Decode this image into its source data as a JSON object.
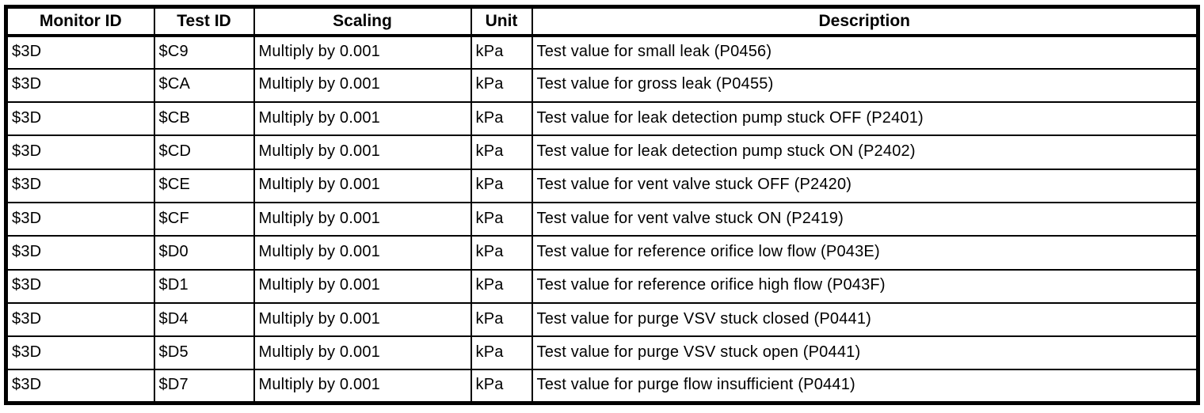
{
  "page": {
    "background_color": "#ffffff",
    "border_color": "#000000"
  },
  "table": {
    "columns": [
      "Monitor ID",
      "Test ID",
      "Scaling",
      "Unit",
      "Description"
    ],
    "rows": [
      {
        "monitor_id": "$3D",
        "test_id": "$C9",
        "scaling": "Multiply by 0.001",
        "unit": "kPa",
        "description": "Test value for small leak (P0456)"
      },
      {
        "monitor_id": "$3D",
        "test_id": "$CA",
        "scaling": "Multiply by 0.001",
        "unit": "kPa",
        "description": "Test value for gross leak (P0455)"
      },
      {
        "monitor_id": "$3D",
        "test_id": "$CB",
        "scaling": "Multiply by 0.001",
        "unit": "kPa",
        "description": "Test value for leak detection pump stuck OFF (P2401)"
      },
      {
        "monitor_id": "$3D",
        "test_id": "$CD",
        "scaling": "Multiply by 0.001",
        "unit": "kPa",
        "description": "Test value for leak detection pump stuck ON (P2402)"
      },
      {
        "monitor_id": "$3D",
        "test_id": "$CE",
        "scaling": "Multiply by 0.001",
        "unit": "kPa",
        "description": "Test value for vent valve stuck OFF (P2420)"
      },
      {
        "monitor_id": "$3D",
        "test_id": "$CF",
        "scaling": "Multiply by 0.001",
        "unit": "kPa",
        "description": "Test value for vent valve stuck ON (P2419)"
      },
      {
        "monitor_id": "$3D",
        "test_id": "$D0",
        "scaling": "Multiply by 0.001",
        "unit": "kPa",
        "description": "Test value for reference orifice low flow (P043E)"
      },
      {
        "monitor_id": "$3D",
        "test_id": "$D1",
        "scaling": "Multiply by 0.001",
        "unit": "kPa",
        "description": "Test value for reference orifice high flow (P043F)"
      },
      {
        "monitor_id": "$3D",
        "test_id": "$D4",
        "scaling": "Multiply by 0.001",
        "unit": "kPa",
        "description": "Test value for purge VSV stuck closed (P0441)"
      },
      {
        "monitor_id": "$3D",
        "test_id": "$D5",
        "scaling": "Multiply by 0.001",
        "unit": "kPa",
        "description": "Test value for purge VSV stuck open (P0441)"
      },
      {
        "monitor_id": "$3D",
        "test_id": "$D7",
        "scaling": "Multiply by 0.001",
        "unit": "kPa",
        "description": "Test value for purge flow insufficient (P0441)"
      }
    ]
  }
}
